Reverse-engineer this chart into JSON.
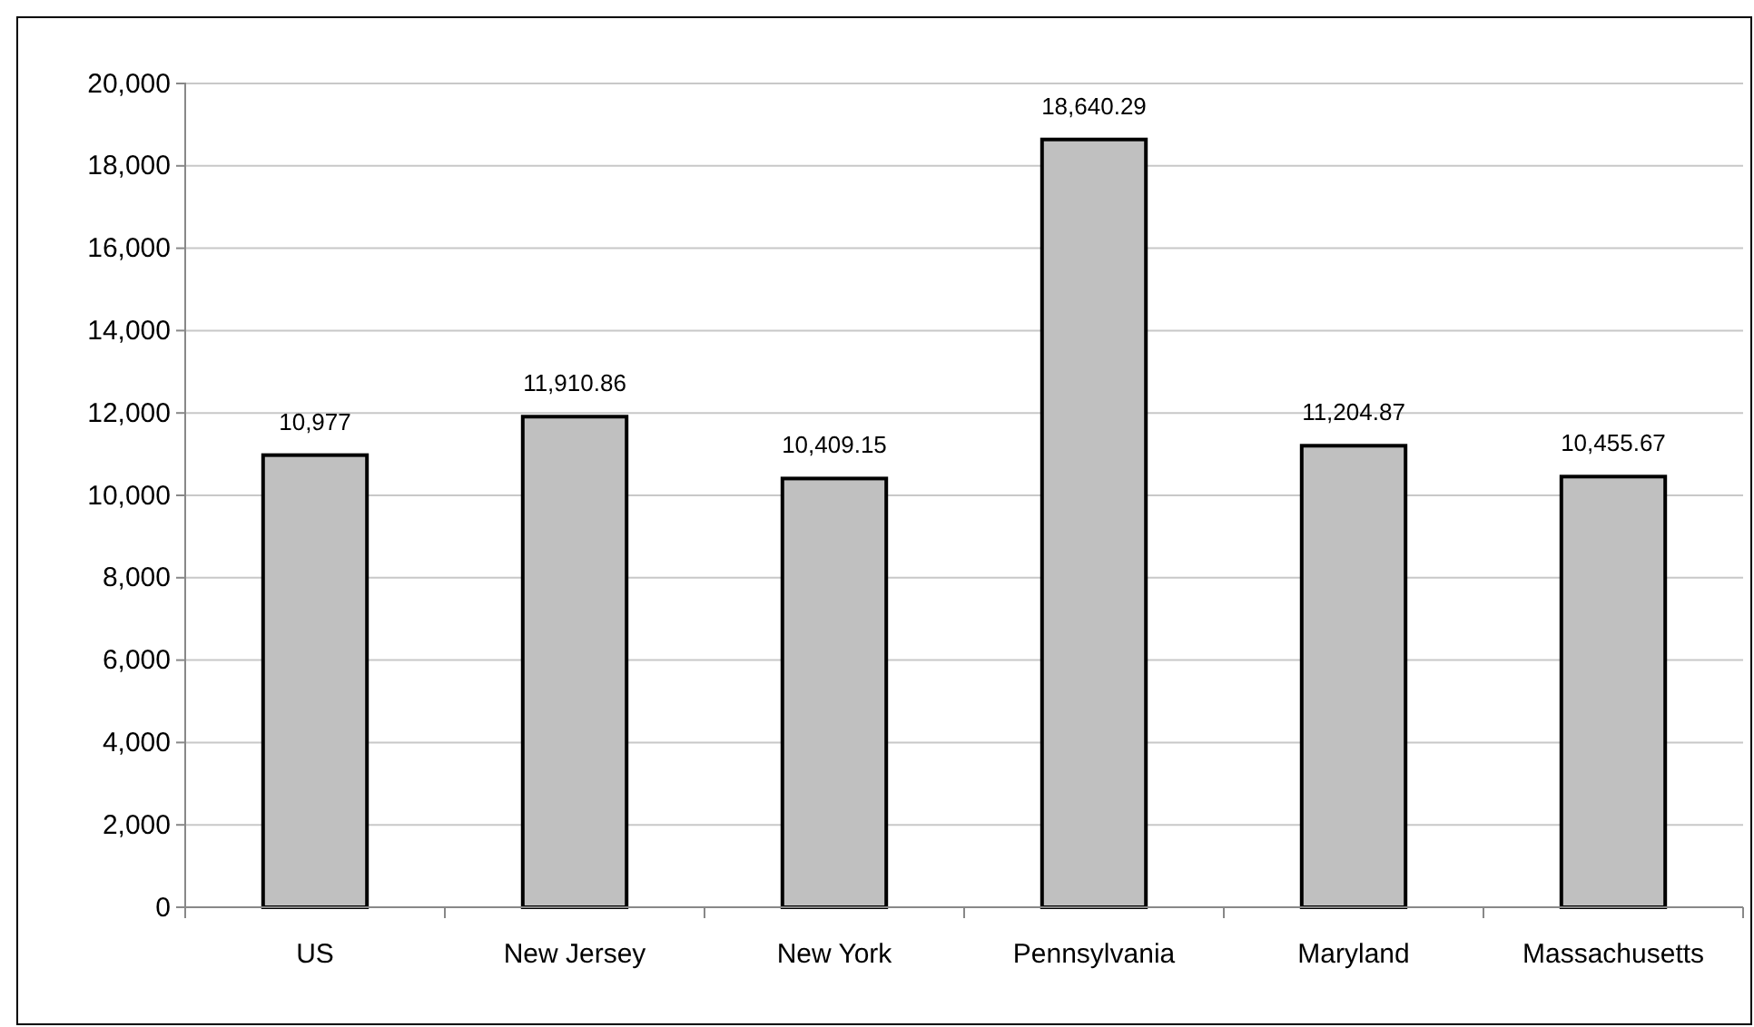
{
  "chart_data": {
    "type": "bar",
    "categories": [
      "US",
      "New Jersey",
      "New York",
      "Pennsylvania",
      "Maryland",
      "Massachusetts"
    ],
    "values": [
      10977,
      11910.86,
      10409.15,
      18640.29,
      11204.87,
      10455.67
    ],
    "value_labels": [
      "10,977",
      "11,910.86",
      "10,409.15",
      "18,640.29",
      "11,204.87",
      "10,455.67"
    ],
    "color": "#c0c0c0",
    "ylim": [
      0,
      20000
    ],
    "yticks": [
      {
        "value": 0,
        "label": "0"
      },
      {
        "value": 2000,
        "label": "2,000"
      },
      {
        "value": 4000,
        "label": "4,000"
      },
      {
        "value": 6000,
        "label": "6,000"
      },
      {
        "value": 8000,
        "label": "8,000"
      },
      {
        "value": 10000,
        "label": "10,000"
      },
      {
        "value": 12000,
        "label": "12,000"
      },
      {
        "value": 14000,
        "label": "14,000"
      },
      {
        "value": 16000,
        "label": "16,000"
      },
      {
        "value": 18000,
        "label": "18,000"
      },
      {
        "value": 20000,
        "label": "20,000"
      }
    ],
    "grid": "y"
  }
}
